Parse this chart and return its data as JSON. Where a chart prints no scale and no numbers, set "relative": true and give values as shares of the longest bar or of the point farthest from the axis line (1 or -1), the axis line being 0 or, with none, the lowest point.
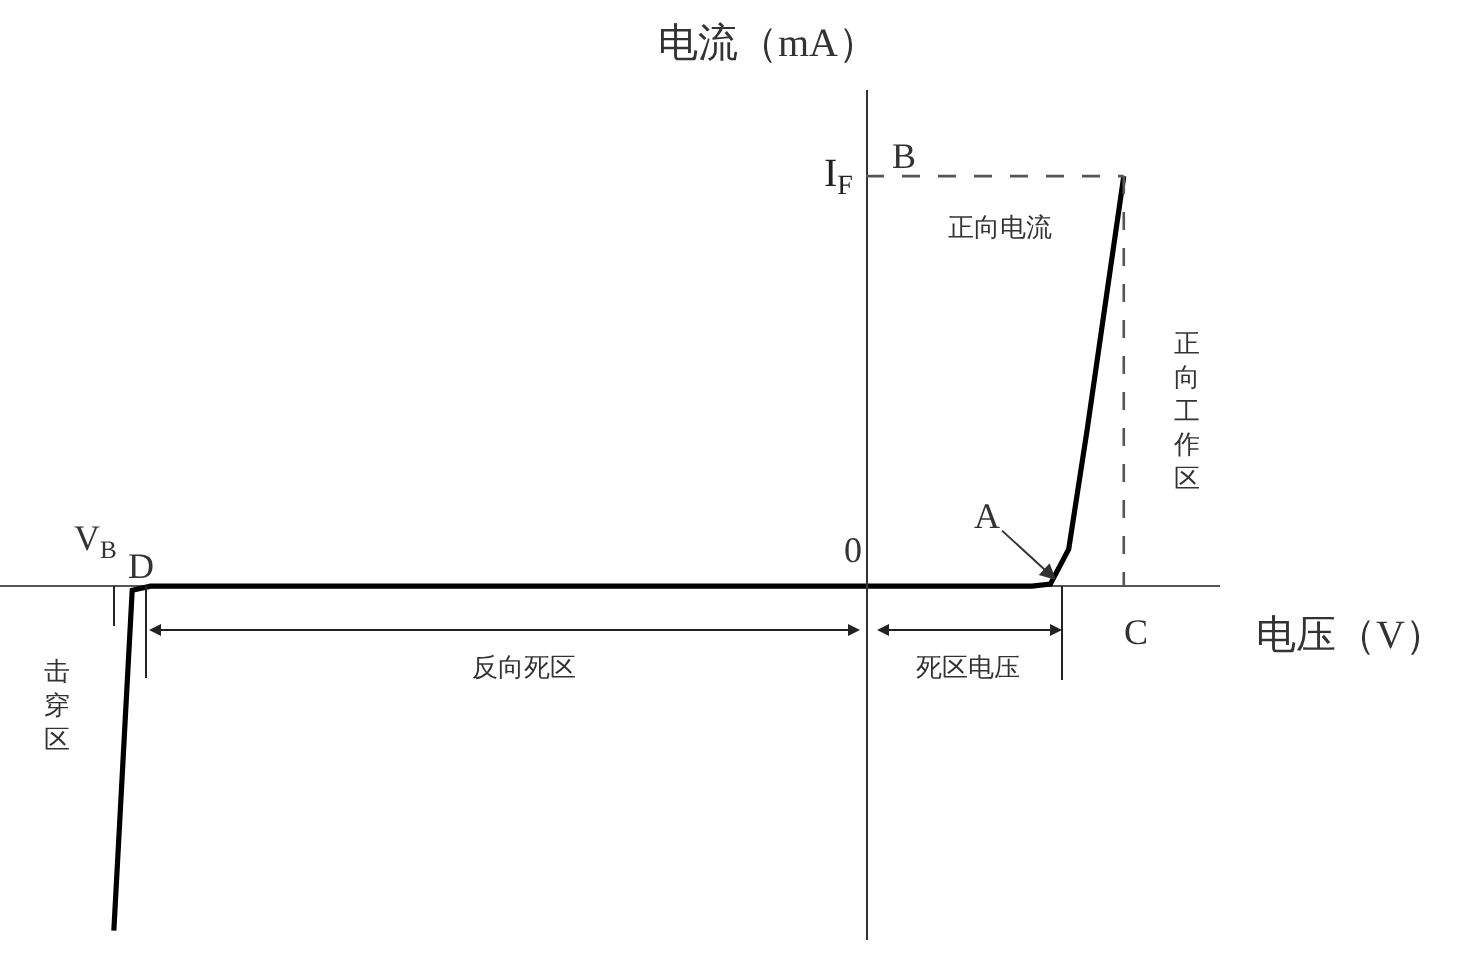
{
  "chart_data": {
    "type": "line",
    "relative": true,
    "xlabel": "电压（V）",
    "ylabel": "电流（mA）",
    "categories": [
      null,
      null,
      null,
      null,
      null,
      null,
      null,
      null,
      null,
      null,
      null,
      null,
      null,
      null,
      null,
      null,
      null,
      null,
      null,
      null,
      null,
      null,
      null,
      null,
      null,
      null,
      null,
      null,
      null,
      null,
      null,
      null,
      null,
      null,
      null,
      null,
      null,
      null,
      null,
      null,
      null,
      null,
      null,
      null,
      null,
      null,
      null,
      null,
      null,
      null,
      null,
      null,
      null,
      null,
      null,
      null,
      null,
      null,
      null,
      null,
      null,
      null,
      null,
      null,
      null,
      null,
      null
    ],
    "series": [
      {
        "color": "#000000",
        "values": [
          null,
          null,
          null,
          null,
          null,
          null,
          -0.84,
          -0.01,
          0,
          0,
          0,
          0,
          0,
          0,
          0,
          0,
          0,
          0,
          0,
          0,
          0,
          0,
          0,
          0,
          0,
          0,
          0,
          0,
          0,
          0,
          0,
          0,
          0,
          0,
          0,
          0,
          0,
          0,
          0,
          0,
          0,
          0,
          0,
          0,
          0,
          0,
          0,
          0,
          0,
          0,
          0,
          0,
          0,
          0,
          0,
          0,
          0,
          0.005,
          0.09,
          0.38,
          0.69,
          1,
          null,
          null,
          null,
          null,
          null
        ]
      }
    ],
    "marker": "none",
    "line_style": "solid",
    "ref_lines": [
      {
        "axis": "y",
        "value": 1,
        "label": "I$_{F}$",
        "line_style": "dashed",
        "color": "#555555"
      }
    ],
    "annotations": [
      "0",
      "B",
      "正向电流",
      "正向工作区",
      "A",
      "C",
      "V$_{B}$",
      "D",
      "击穿区",
      "反向死区",
      "死区电压"
    ]
  }
}
